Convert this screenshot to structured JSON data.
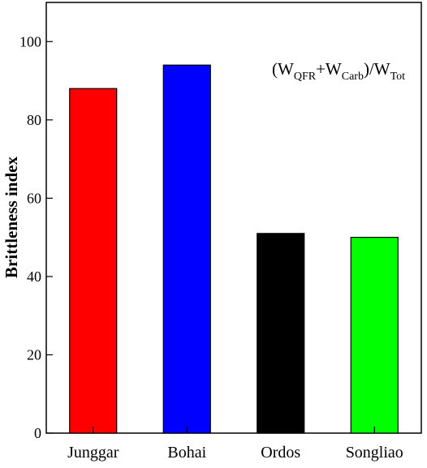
{
  "chart_data": {
    "type": "bar",
    "categories": [
      "Junggar",
      "Bohai",
      "Ordos",
      "Songliao"
    ],
    "values": [
      88,
      94,
      51,
      50
    ],
    "colors": [
      "#ff0000",
      "#0000ff",
      "#000000",
      "#00ff00"
    ],
    "ylabel": "Brittleness index",
    "xlabel": "",
    "ylim": [
      0,
      110
    ],
    "yticks": [
      0,
      20,
      40,
      60,
      80,
      100
    ],
    "grid": false,
    "annotation": {
      "parts": [
        {
          "text": "(W",
          "sub": false
        },
        {
          "text": "QFR",
          "sub": true
        },
        {
          "text": "+W",
          "sub": false
        },
        {
          "text": "Carb",
          "sub": true
        },
        {
          "text": ")/W",
          "sub": false
        },
        {
          "text": "Tot",
          "sub": true
        }
      ]
    }
  }
}
